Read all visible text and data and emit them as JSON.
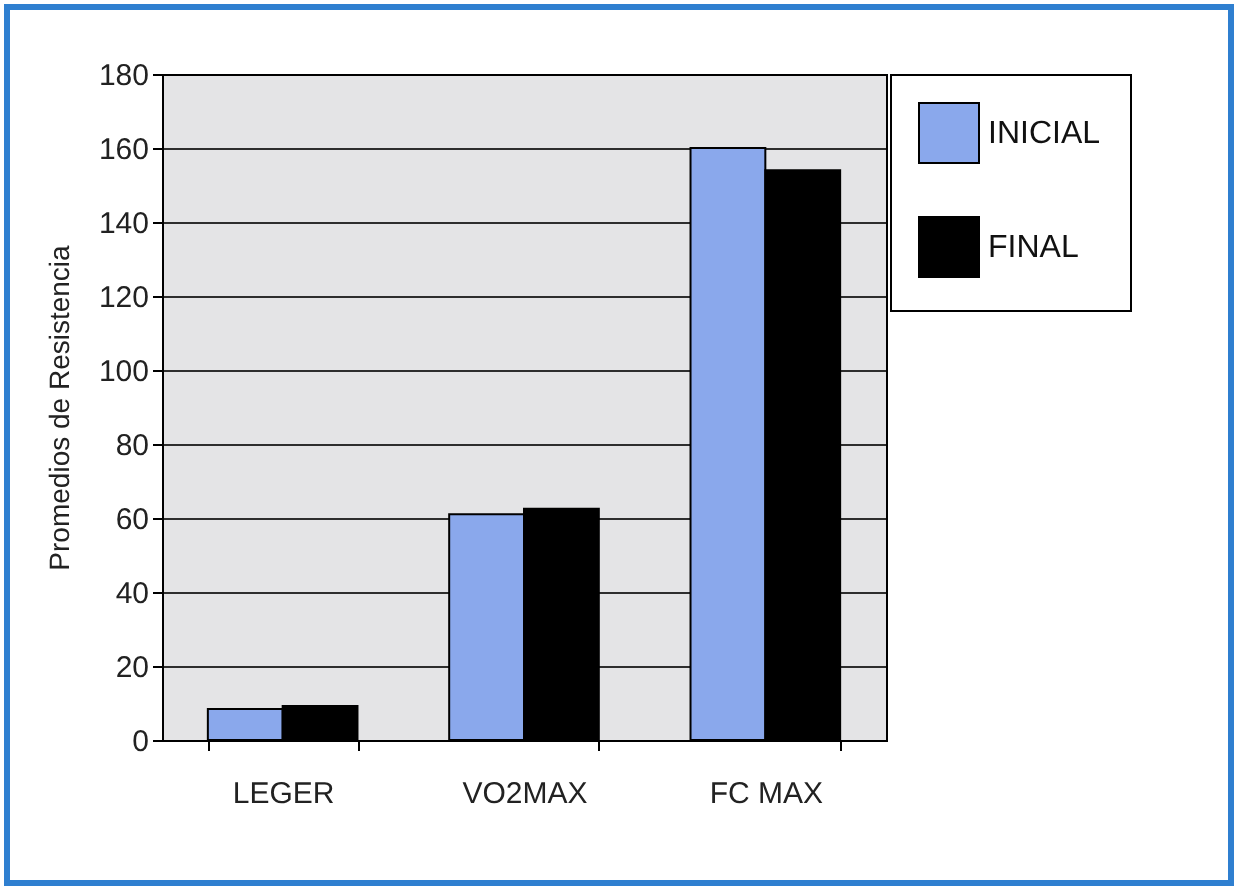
{
  "chart_data": {
    "type": "bar",
    "ylabel": "Promedios de Resistencia",
    "categories": [
      "LEGER",
      "VO2MAX",
      "FC MAX"
    ],
    "series": [
      {
        "name": "INICIAL",
        "color": "#8aa8ec",
        "values": [
          8.4,
          61,
          160
        ]
      },
      {
        "name": "FINAL",
        "color": "#000000",
        "values": [
          9.2,
          62.5,
          154
        ]
      }
    ],
    "ylim": [
      0,
      180
    ],
    "yticks": [
      0,
      20,
      40,
      60,
      80,
      100,
      120,
      140,
      160,
      180
    ],
    "grid": "y",
    "legend": "right"
  }
}
